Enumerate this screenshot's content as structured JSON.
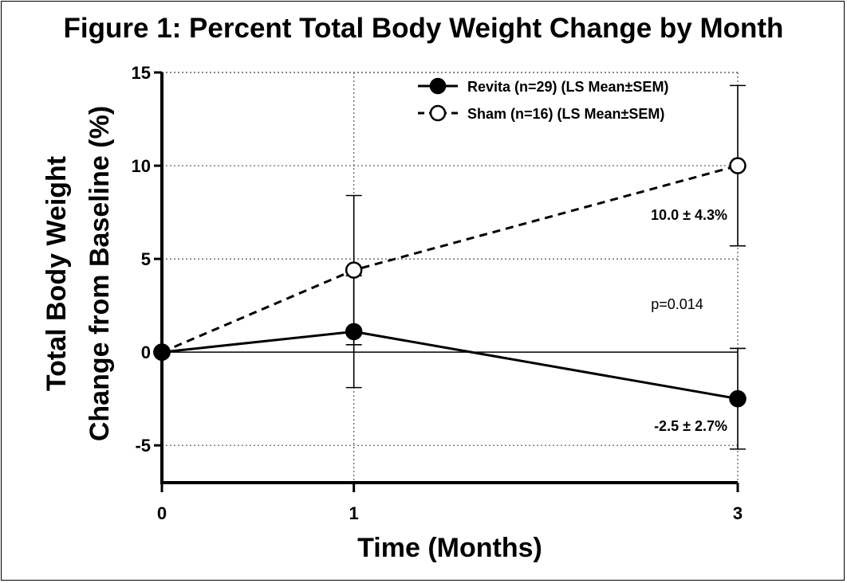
{
  "chart_data": {
    "type": "line",
    "title": "Figure 1: Percent Total Body Weight Change by Month",
    "xlabel": "Time (Months)",
    "ylabel_lines": [
      "Total Body Weight",
      "Change from Baseline (%)"
    ],
    "x": [
      0,
      1,
      3
    ],
    "x_ticks": [
      "0",
      "1",
      "3"
    ],
    "xlim": [
      0,
      3
    ],
    "ylim": [
      -7,
      15
    ],
    "y_ticks": [
      15,
      10,
      5,
      0,
      -5
    ],
    "grid": "dotted",
    "legend_position": "top-right",
    "series": [
      {
        "name": "Revita (n=29) (LS Mean±SEM)",
        "marker": "filled-circle",
        "line": "solid",
        "color": "#000000",
        "values": [
          0,
          1.1,
          -2.5
        ],
        "error": [
          null,
          3.0,
          2.7
        ]
      },
      {
        "name": "Sham (n=16) (LS Mean±SEM)",
        "marker": "open-circle",
        "line": "dashed",
        "color": "#000000",
        "values": [
          0,
          4.4,
          10.0
        ],
        "error": [
          null,
          4.0,
          4.3
        ]
      }
    ],
    "annotations": {
      "sham_end": "10.0 ± 4.3%",
      "pvalue": "p=0.014",
      "revita_end": "-2.5 ± 2.7%"
    }
  }
}
